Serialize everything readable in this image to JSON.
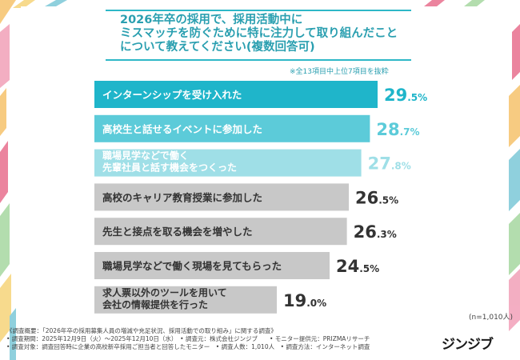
{
  "header": {
    "title_lines": [
      "2026年卒の採用で、採用活動中に",
      "ミスマッチを防ぐために特に注力して取り組んだこと",
      "について教えてください(複数回答可)"
    ],
    "note": "※全13項目中上位7項目を抜粋"
  },
  "chart_data": {
    "type": "bar",
    "orientation": "horizontal",
    "categories": [
      [
        "インターンシップを受け入れた"
      ],
      [
        "高校生と話せるイベントに参加した"
      ],
      [
        "職場見学などで働く",
        "先輩社員と話す機会をつくった"
      ],
      [
        "高校のキャリア教育授業に参加した"
      ],
      [
        "先生と接点を取る機会を増やした"
      ],
      [
        "職場見学などで働く現場を見てもらった"
      ],
      [
        "求人票以外のツールを用いて",
        "会社の情報提供を行った"
      ]
    ],
    "values": [
      29.5,
      28.7,
      27.8,
      26.5,
      26.3,
      24.5,
      19.0
    ],
    "value_labels": [
      {
        "int": "29",
        "dec": ".5%"
      },
      {
        "int": "28",
        "dec": ".7%"
      },
      {
        "int": "27",
        "dec": ".8%"
      },
      {
        "int": "26",
        "dec": ".5%"
      },
      {
        "int": "26",
        "dec": ".3%"
      },
      {
        "int": "24",
        "dec": ".5%"
      },
      {
        "int": "19",
        "dec": ".0%"
      }
    ],
    "bar_colors": [
      "#1fb5ca",
      "#5ccbd9",
      "#9fdfe7",
      "#c8c8c8",
      "#c8c8c8",
      "#c8c8c8",
      "#c8c8c8"
    ],
    "label_colors": [
      "#ffffff",
      "#ffffff",
      "#ffffff",
      "#333333",
      "#333333",
      "#333333",
      "#333333"
    ],
    "value_colors": [
      "#1fb5ca",
      "#5ccbd9",
      "#9fdfe7",
      "#333333",
      "#333333",
      "#333333",
      "#333333"
    ]
  },
  "sample_size": "(n=1,010人)",
  "footer": {
    "lines": [
      "《調査概要：「2026年卒の採用募集人員の増減や充足状況、採用活動での取り組み」に関する調査》",
      "• 調査期間：2025年12月9日（火）～2025年12月10日（水）　• 調査元：株式会社ジンジブ　　• モニター提供元：PRIZMAリサーチ",
      "• 調査対象：調査回答時に企業の高校新卒採用ご担当者と回答したモニター　• 調査人数：1,010人　• 調査方法：インターネット調査"
    ]
  },
  "logo": "ジンジブ"
}
